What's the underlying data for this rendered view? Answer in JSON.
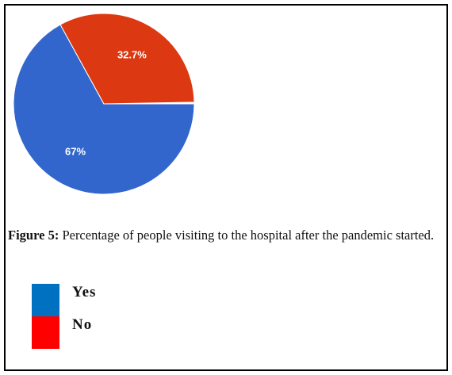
{
  "chart_data": {
    "type": "pie",
    "categories": [
      "Yes",
      "No"
    ],
    "values": [
      67,
      32.7
    ],
    "value_labels": [
      "67%",
      "32.7%"
    ],
    "colors": [
      "#3366cc",
      "#dc3912"
    ],
    "legend_colors": [
      "#0070c0",
      "#ff0000"
    ],
    "caption_label": "Figure 5:",
    "caption": "Percentage of people visiting to the hospital after the pandemic started."
  }
}
